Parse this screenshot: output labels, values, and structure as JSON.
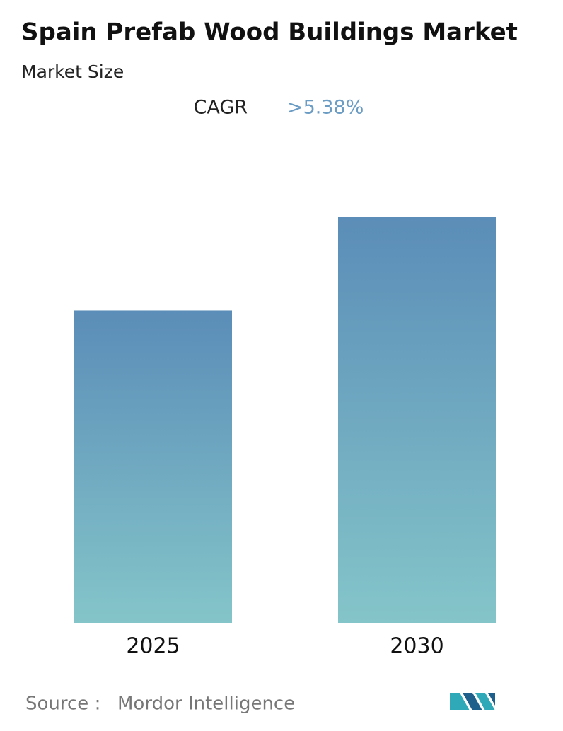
{
  "chart_data": {
    "type": "bar",
    "title": "Spain Prefab Wood Buildings Market",
    "subtitle": "Market Size",
    "cagr_label": "CAGR",
    "cagr_value": ">5.38%",
    "categories": [
      "2025",
      "2030"
    ],
    "values": [
      1,
      1.3
    ],
    "color_top": "#5b8db8",
    "color_bottom": "#84c5c9",
    "source_label": "Source :",
    "source": "Mordor Intelligence"
  }
}
